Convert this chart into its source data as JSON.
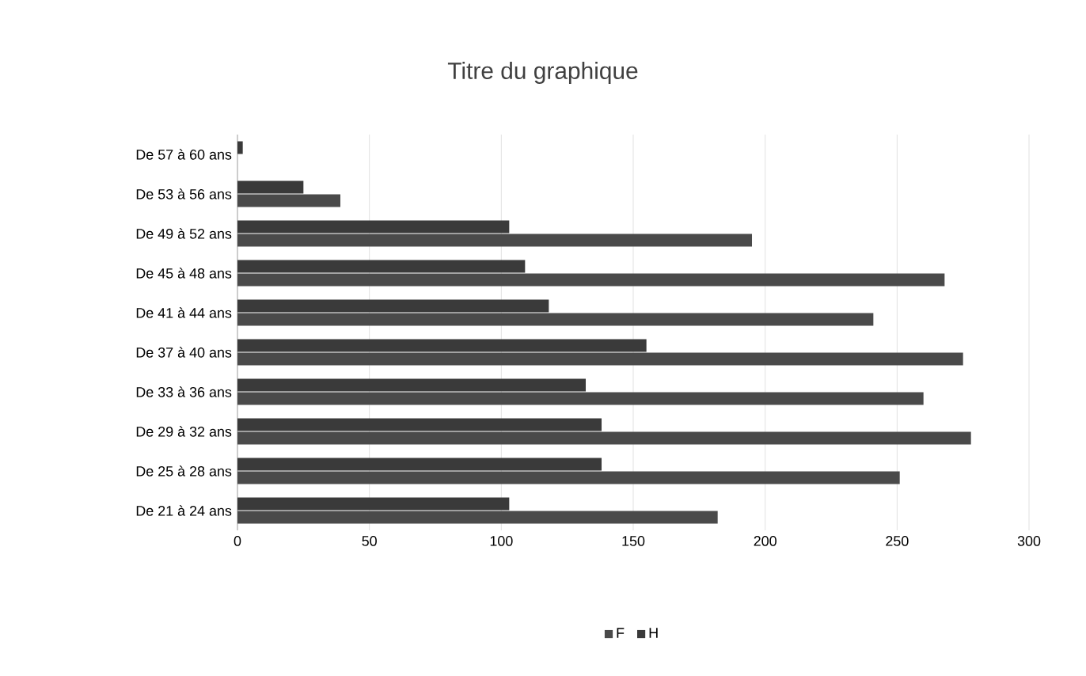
{
  "chart_data": {
    "type": "bar",
    "orientation": "horizontal",
    "title": "Titre du graphique",
    "categories": [
      "De 57 à 60 ans",
      "De 53 à 56 ans",
      "De 49 à 52 ans",
      "De 45 à 48 ans",
      "De 41 à 44 ans",
      "De 37 à 40 ans",
      "De 33 à 36 ans",
      "De 29 à 32 ans",
      "De 25 à 28 ans",
      "De 21 à 24 ans"
    ],
    "series": [
      {
        "name": "F",
        "color": "#4a4a4a",
        "values": [
          0,
          39,
          195,
          268,
          241,
          275,
          260,
          278,
          251,
          182
        ]
      },
      {
        "name": "H",
        "color": "#3a3a3a",
        "values": [
          2,
          25,
          103,
          109,
          118,
          155,
          132,
          138,
          138,
          103
        ]
      }
    ],
    "xlim": [
      0,
      300
    ],
    "xticks": [
      0,
      50,
      100,
      150,
      200,
      250,
      300
    ],
    "grid": "x",
    "legend": "bottom"
  }
}
